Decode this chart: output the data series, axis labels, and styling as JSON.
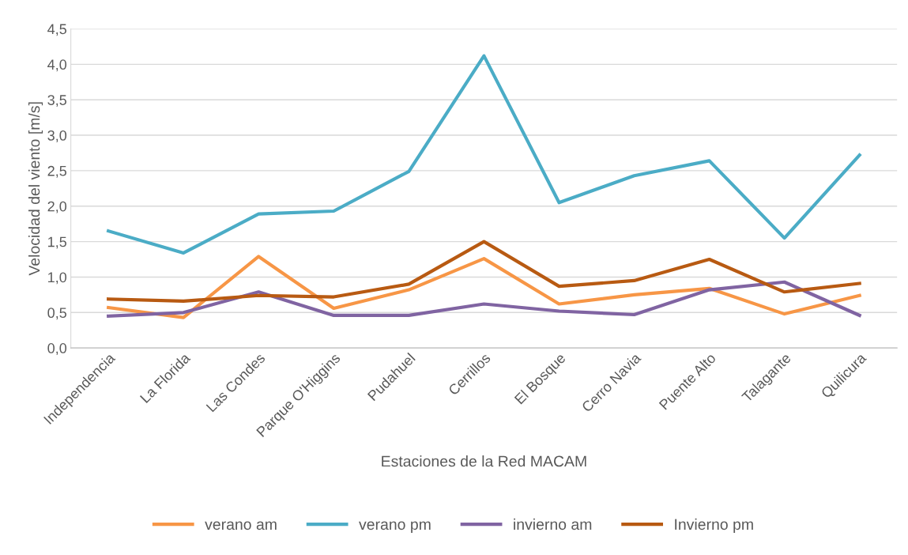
{
  "chart_data": {
    "type": "line",
    "xlabel": "Estaciones de la Red MACAM",
    "ylabel": "Velocidad del viento [m/s]",
    "categories": [
      "Independencia",
      "La Florida",
      "Las Condes",
      "Parque O'Higgins",
      "Pudahuel",
      "Cerrillos",
      "El Bosque",
      "Cerro Navia",
      "Puente Alto",
      "Talagante",
      "Quilicura"
    ],
    "series": [
      {
        "name": "verano am",
        "color": "#f79646",
        "values": [
          0.57,
          0.43,
          1.29,
          0.56,
          0.82,
          1.26,
          0.62,
          0.75,
          0.84,
          0.48,
          0.74
        ]
      },
      {
        "name": "verano pm",
        "color": "#4bacc6",
        "values": [
          1.65,
          1.34,
          1.89,
          1.93,
          2.49,
          4.12,
          2.05,
          2.43,
          2.64,
          1.55,
          2.72
        ]
      },
      {
        "name": "invierno am",
        "color": "#8064a2",
        "values": [
          0.45,
          0.5,
          0.79,
          0.46,
          0.46,
          0.62,
          0.52,
          0.47,
          0.82,
          0.93,
          0.46
        ]
      },
      {
        "name": "Invierno pm",
        "color": "#b85a12",
        "values": [
          0.69,
          0.66,
          0.74,
          0.72,
          0.9,
          1.5,
          0.87,
          0.95,
          1.25,
          0.79,
          0.91
        ]
      }
    ],
    "ylim": [
      0,
      4.5
    ],
    "yticks": [
      {
        "value": 0,
        "label": "0,0"
      },
      {
        "value": 0.5,
        "label": "0,5"
      },
      {
        "value": 1,
        "label": "1,0"
      },
      {
        "value": 1.5,
        "label": "1,5"
      },
      {
        "value": 2,
        "label": "2,0"
      },
      {
        "value": 2.5,
        "label": "2,5"
      },
      {
        "value": 3,
        "label": "3,0"
      },
      {
        "value": 3.5,
        "label": "3,5"
      },
      {
        "value": 4,
        "label": "4,0"
      },
      {
        "value": 4.5,
        "label": "4,5"
      }
    ],
    "grid": "y",
    "legend": "bottom",
    "marker": "none",
    "line_style": "solid"
  }
}
